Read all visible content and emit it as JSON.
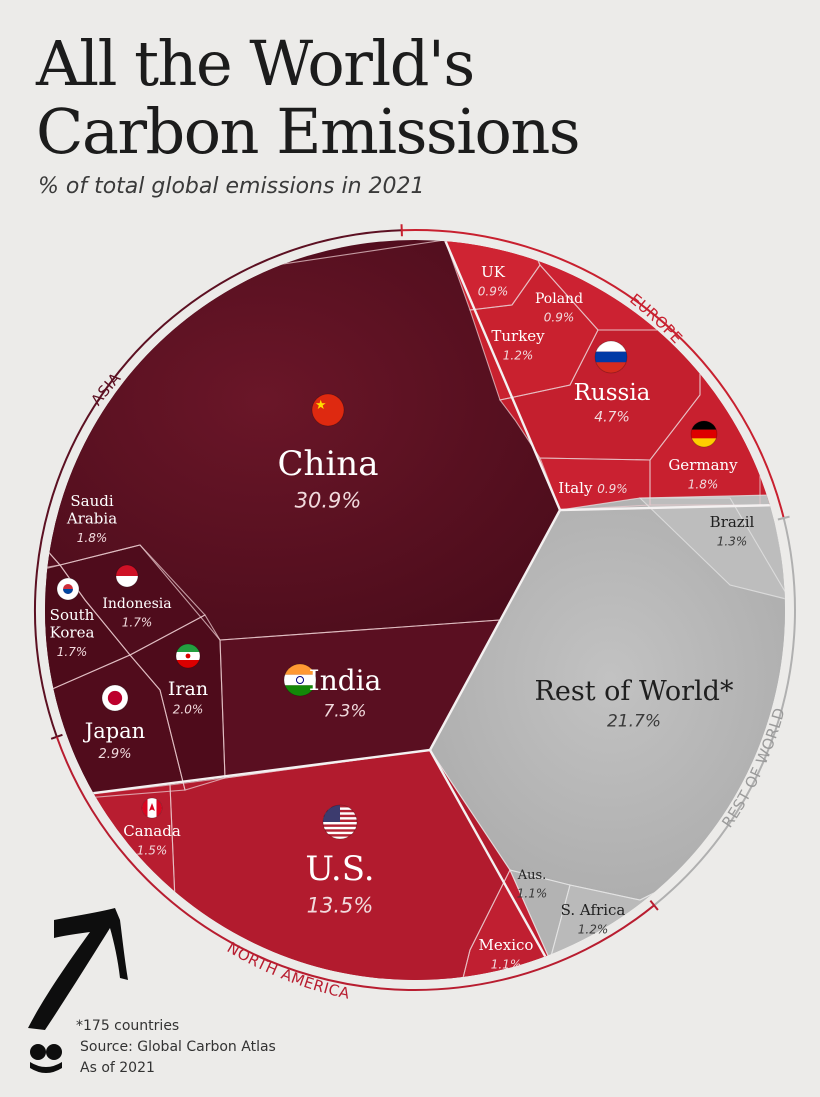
{
  "header": {
    "title_line1": "All the World's",
    "title_line2": "Carbon Emissions",
    "subtitle": "% of total global emissions in 2021"
  },
  "chart_data": {
    "type": "voronoi-treemap",
    "unit": "% of total global emissions in 2021",
    "groups": [
      {
        "name": "ASIA",
        "color": "#5c1022",
        "items": [
          {
            "id": "china",
            "label": "China",
            "value": 30.9,
            "value_text": "30.9%",
            "flag": "china-flag-icon"
          },
          {
            "id": "india",
            "label": "India",
            "value": 7.3,
            "value_text": "7.3%",
            "flag": "india-flag-icon"
          },
          {
            "id": "japan",
            "label": "Japan",
            "value": 2.9,
            "value_text": "2.9%",
            "flag": "japan-flag-icon"
          },
          {
            "id": "iran",
            "label": "Iran",
            "value": 2.0,
            "value_text": "2.0%",
            "flag": "iran-flag-icon"
          },
          {
            "id": "saudi",
            "label_lines": [
              "Saudi",
              "Arabia"
            ],
            "value": 1.8,
            "value_text": "1.8%"
          },
          {
            "id": "indonesia",
            "label": "Indonesia",
            "value": 1.7,
            "value_text": "1.7%",
            "flag": "indonesia-flag-icon"
          },
          {
            "id": "southkorea",
            "label_lines": [
              "South",
              "Korea"
            ],
            "value": 1.7,
            "value_text": "1.7%",
            "flag": "south-korea-flag-icon"
          }
        ]
      },
      {
        "name": "EUROPE",
        "color": "#c8202f",
        "items": [
          {
            "id": "russia",
            "label": "Russia",
            "value": 4.7,
            "value_text": "4.7%",
            "flag": "russia-flag-icon"
          },
          {
            "id": "germany",
            "label": "Germany",
            "value": 1.8,
            "value_text": "1.8%",
            "flag": "germany-flag-icon"
          },
          {
            "id": "turkey",
            "label": "Turkey",
            "value": 1.2,
            "value_text": "1.2%"
          },
          {
            "id": "uk",
            "label": "UK",
            "value": 0.9,
            "value_text": "0.9%"
          },
          {
            "id": "poland",
            "label": "Poland",
            "value": 0.9,
            "value_text": "0.9%"
          },
          {
            "id": "italy",
            "label": "Italy",
            "value": 0.9,
            "value_text": "0.9%"
          }
        ]
      },
      {
        "name": "NORTH AMERICA",
        "color": "#b81d30",
        "items": [
          {
            "id": "us",
            "label": "U.S.",
            "value": 13.5,
            "value_text": "13.5%",
            "flag": "us-flag-icon"
          },
          {
            "id": "canada",
            "label": "Canada",
            "value": 1.5,
            "value_text": "1.5%",
            "flag": "canada-flag-icon"
          },
          {
            "id": "mexico",
            "label": "Mexico",
            "value": 1.1,
            "value_text": "1.1%"
          }
        ]
      },
      {
        "name": "REST OF WORLD",
        "color": "#b5b5b5",
        "items": [
          {
            "id": "row",
            "label": "Rest of World*",
            "value": 21.7,
            "value_text": "21.7%"
          },
          {
            "id": "brazil",
            "label": "Brazil",
            "value": 1.3,
            "value_text": "1.3%"
          },
          {
            "id": "aus",
            "label": "Aus.",
            "value": 1.1,
            "value_text": "1.1%"
          },
          {
            "id": "safrica",
            "label": "S. Africa",
            "value": 1.2,
            "value_text": "1.2%"
          }
        ]
      }
    ]
  },
  "footer": {
    "footnote": "*175 countries",
    "source": "Source: Global Carbon Atlas",
    "as_of": "As of 2021"
  }
}
